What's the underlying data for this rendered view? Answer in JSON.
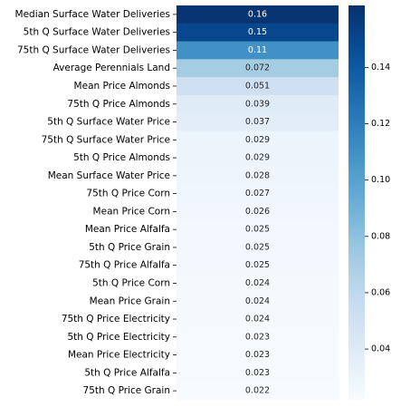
{
  "chart_data": {
    "type": "heatmap",
    "title": "",
    "xlabel": "",
    "ylabel": "",
    "colormap": "Blues",
    "rows": [
      {
        "label": "Median Surface Water Deliveries",
        "value": 0.16,
        "display": "0.16"
      },
      {
        "label": "5th Q Surface Water Deliveries",
        "value": 0.15,
        "display": "0.15"
      },
      {
        "label": "75th Q Surface Water Deliveries",
        "value": 0.11,
        "display": "0.11"
      },
      {
        "label": "Average Perennials Land",
        "value": 0.072,
        "display": "0.072"
      },
      {
        "label": "Mean Price Almonds",
        "value": 0.051,
        "display": "0.051"
      },
      {
        "label": "75th Q Price Almonds",
        "value": 0.039,
        "display": "0.039"
      },
      {
        "label": "5th Q Surface Water Price",
        "value": 0.037,
        "display": "0.037"
      },
      {
        "label": "75th Q Surface Water Price",
        "value": 0.029,
        "display": "0.029"
      },
      {
        "label": "5th Q Price Almonds",
        "value": 0.029,
        "display": "0.029"
      },
      {
        "label": "Mean Surface Water Price",
        "value": 0.028,
        "display": "0.028"
      },
      {
        "label": "75th Q Price Corn",
        "value": 0.027,
        "display": "0.027"
      },
      {
        "label": "Mean Price Corn",
        "value": 0.026,
        "display": "0.026"
      },
      {
        "label": "Mean Price Alfalfa",
        "value": 0.025,
        "display": "0.025"
      },
      {
        "label": "5th Q Price Grain",
        "value": 0.025,
        "display": "0.025"
      },
      {
        "label": "75th Q Price Alfalfa",
        "value": 0.025,
        "display": "0.025"
      },
      {
        "label": "5th Q Price Corn",
        "value": 0.024,
        "display": "0.024"
      },
      {
        "label": "Mean Price Grain",
        "value": 0.024,
        "display": "0.024"
      },
      {
        "label": "75th Q Price Electricity",
        "value": 0.024,
        "display": "0.024"
      },
      {
        "label": "5th Q Price Electricity",
        "value": 0.023,
        "display": "0.023"
      },
      {
        "label": "Mean Price Electricity",
        "value": 0.023,
        "display": "0.023"
      },
      {
        "label": "5th Q Price Alfalfa",
        "value": 0.023,
        "display": "0.023"
      },
      {
        "label": "75th Q Price Grain",
        "value": 0.022,
        "display": "0.022"
      }
    ],
    "colorbar": {
      "vmin": 0.022,
      "vmax": 0.162,
      "ticks": [
        {
          "value": 0.04,
          "label": "0.04"
        },
        {
          "value": 0.06,
          "label": "0.06"
        },
        {
          "value": 0.08,
          "label": "0.08"
        },
        {
          "value": 0.1,
          "label": "0.10"
        },
        {
          "value": 0.12,
          "label": "0.12"
        },
        {
          "value": 0.14,
          "label": "0.14"
        }
      ]
    }
  }
}
